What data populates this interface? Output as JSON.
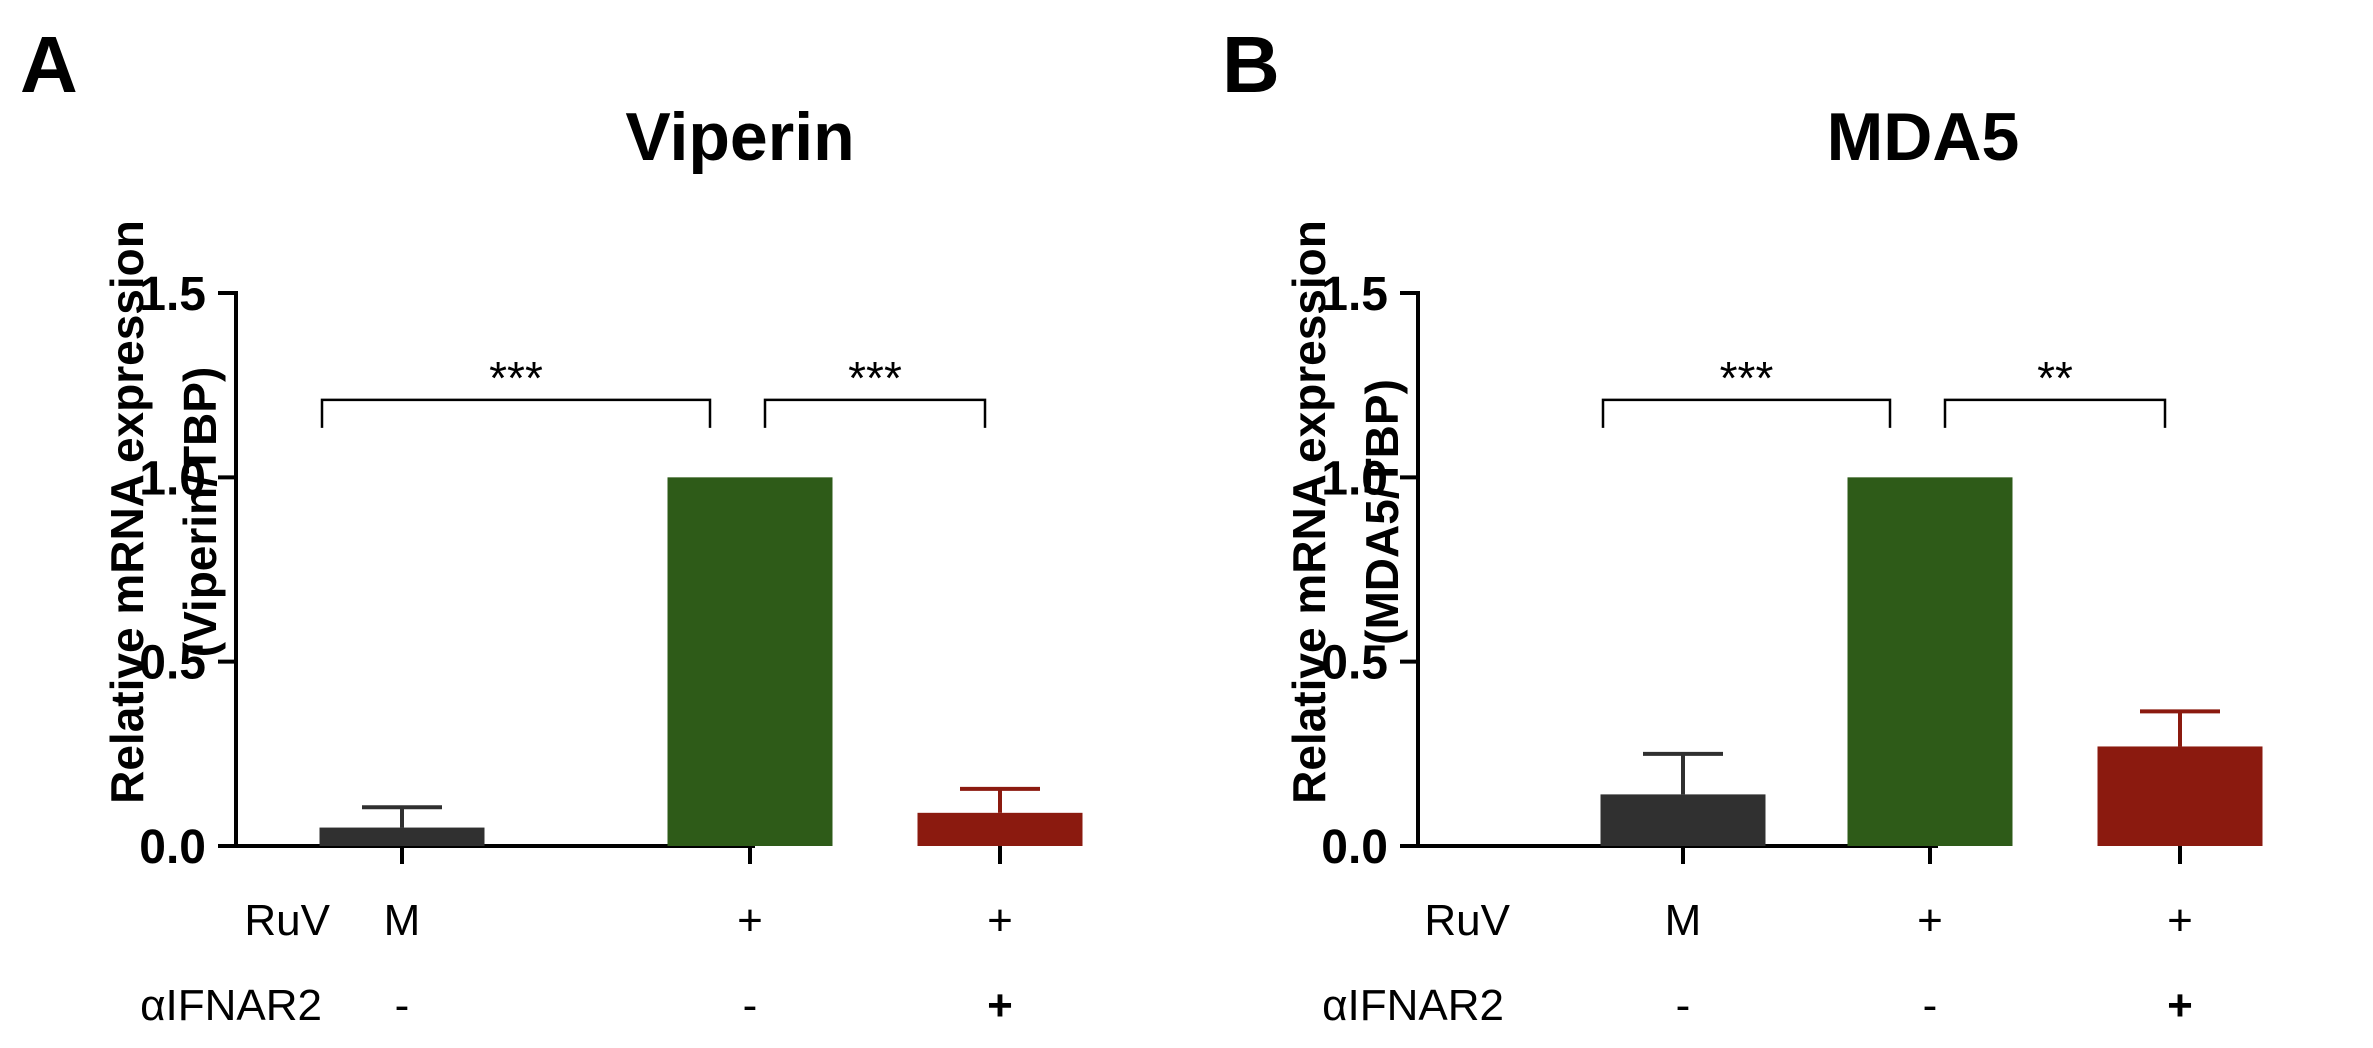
{
  "chart_data": [
    {
      "type": "bar",
      "panel_label": "A",
      "title": "Viperin",
      "ylabel_line1": "Relative mRNA expression",
      "ylabel_line2": "(Viperin/TBP)",
      "ylim": [
        0,
        1.5
      ],
      "yticks": [
        "0.0",
        "0.5",
        "1.0",
        "1.5"
      ],
      "ytick_values": [
        0.0,
        0.5,
        1.0,
        1.5
      ],
      "categories": [
        "M",
        "RuV",
        "RuV + αIFNAR2"
      ],
      "values": [
        0.05,
        1.0,
        0.09
      ],
      "errors": [
        0.055,
        0.0,
        0.065
      ],
      "colors": [
        "#303030",
        "#2e5b18",
        "#8b1a0f"
      ],
      "significance": [
        {
          "from": 0,
          "to": 1,
          "label": "***",
          "y": 1.21
        },
        {
          "from": 1,
          "to": 2,
          "label": "***",
          "y": 1.21
        }
      ],
      "row_labels": [
        "RuV",
        "αIFNAR2"
      ],
      "row_values": [
        [
          "M",
          "+",
          "+"
        ],
        [
          "-",
          "-",
          "+"
        ]
      ]
    },
    {
      "type": "bar",
      "panel_label": "B",
      "title": "MDA5",
      "ylabel_line1": "Relative mRNA expression",
      "ylabel_line2": "(MDA5/TBP)",
      "ylim": [
        0,
        1.5
      ],
      "yticks": [
        "0.0",
        "0.5",
        "1.0",
        "1.5"
      ],
      "ytick_values": [
        0.0,
        0.5,
        1.0,
        1.5
      ],
      "categories": [
        "M",
        "RuV",
        "RuV + αIFNAR2"
      ],
      "values": [
        0.14,
        1.0,
        0.27
      ],
      "errors": [
        0.11,
        0.0,
        0.095
      ],
      "colors": [
        "#303030",
        "#2e5b18",
        "#8b1a0f"
      ],
      "significance": [
        {
          "from": 0,
          "to": 1,
          "label": "***",
          "y": 1.21
        },
        {
          "from": 1,
          "to": 2,
          "label": "**",
          "y": 1.21
        }
      ],
      "row_labels": [
        "RuV",
        "αIFNAR2"
      ],
      "row_values": [
        [
          "M",
          "+",
          "+"
        ],
        [
          "-",
          "-",
          "+"
        ]
      ]
    }
  ]
}
